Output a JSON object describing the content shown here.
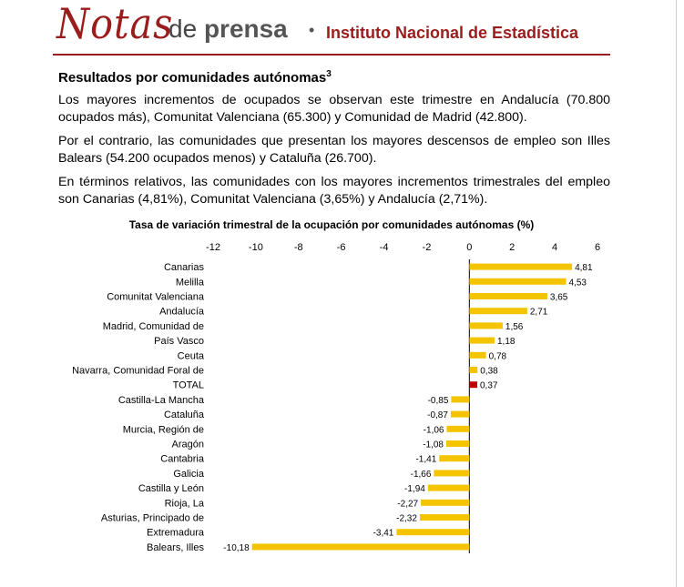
{
  "header": {
    "notas": "Notas",
    "de": "de",
    "prensa": "prensa",
    "separator": "•",
    "institute": "Instituto Nacional de Estadística"
  },
  "section": {
    "title": "Resultados por comunidades autónomas",
    "footnote_ref": "3",
    "paragraphs": [
      "Los mayores incrementos de ocupados se observan este trimestre en Andalucía (70.800 ocupados más), Comunitat Valenciana (65.300) y Comunidad de Madrid (42.800).",
      "Por el contrario, las comunidades que presentan los mayores descensos de empleo son Illes Balears (54.200 ocupados menos) y Cataluña (26.700).",
      "En términos relativos, las comunidades con los mayores incrementos trimestrales del empleo son Canarias (4,81%), Comunitat Valenciana (3,65%) y Andalucía (2,71%)."
    ]
  },
  "chart_data": {
    "type": "bar",
    "orientation": "horizontal",
    "title": "Tasa de variación trimestral de la ocupación por comunidades autónomas (%)",
    "xlim": [
      -12,
      6
    ],
    "xticks": [
      -12,
      -10,
      -8,
      -6,
      -4,
      -2,
      0,
      2,
      4,
      6
    ],
    "xtick_labels": [
      "-12",
      "-10",
      "-8",
      "-6",
      "-4",
      "-2",
      "0",
      "2",
      "4",
      "6"
    ],
    "categories": [
      "Canarias",
      "Melilla",
      "Comunitat Valenciana",
      "Andalucía",
      "Madrid, Comunidad de",
      "País Vasco",
      "Ceuta",
      "Navarra, Comunidad Foral de",
      "TOTAL",
      "Castilla-La Mancha",
      "Cataluña",
      "Murcia, Región de",
      "Aragón",
      "Cantabria",
      "Galicia",
      "Castilla y León",
      "Rioja, La",
      "Asturias, Principado de",
      "Extremadura",
      "Balears, Illes"
    ],
    "values": [
      4.81,
      4.53,
      3.65,
      2.71,
      1.56,
      1.18,
      0.78,
      0.38,
      0.37,
      -0.85,
      -0.87,
      -1.06,
      -1.08,
      -1.41,
      -1.66,
      -1.94,
      -2.27,
      -2.32,
      -3.41,
      -10.18
    ],
    "value_labels": [
      "4,81",
      "4,53",
      "3,65",
      "2,71",
      "1,56",
      "1,18",
      "0,78",
      "0,38",
      "0,37",
      "-0,85",
      "-0,87",
      "-1,06",
      "-1,08",
      "-1,41",
      "-1,66",
      "-1,94",
      "-2,27",
      "-2,32",
      "-3,41",
      "-10,18"
    ],
    "colors": {
      "bar": "#f5c400",
      "highlight": "#c00000",
      "axis": "#000000"
    },
    "highlight_category": "TOTAL",
    "grid": false,
    "legend": "none"
  }
}
